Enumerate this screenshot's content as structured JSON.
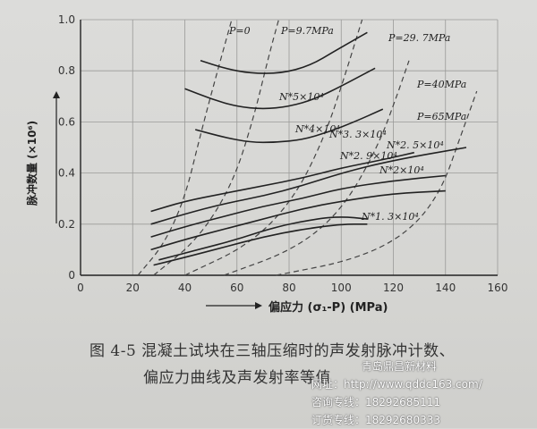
{
  "chart_data": {
    "type": "line",
    "xlabel": "偏应力 (σ₁-P) (MPa)",
    "ylabel": "脉冲数量 (×10⁶)",
    "xlim": [
      0,
      160
    ],
    "ylim": [
      0,
      1.0
    ],
    "xticks": [
      "0",
      "20",
      "40",
      "60",
      "80",
      "100",
      "120",
      "140",
      "160"
    ],
    "yticks": [
      "0",
      "0.2",
      "0.4",
      "0.6",
      "0.8",
      "1.0"
    ],
    "grid": true,
    "solid_series": [
      {
        "label": "N*5×10⁴",
        "points": [
          [
            46,
            0.84
          ],
          [
            55,
            0.81
          ],
          [
            65,
            0.79
          ],
          [
            77,
            0.79
          ],
          [
            88,
            0.82
          ],
          [
            98,
            0.88
          ],
          [
            110,
            0.95
          ]
        ]
      },
      {
        "label": "N*4×10⁴",
        "points": [
          [
            40,
            0.73
          ],
          [
            50,
            0.69
          ],
          [
            60,
            0.66
          ],
          [
            70,
            0.65
          ],
          [
            80,
            0.66
          ],
          [
            90,
            0.69
          ],
          [
            100,
            0.74
          ],
          [
            113,
            0.81
          ]
        ]
      },
      {
        "label": "N*3.3×10⁴",
        "points": [
          [
            44,
            0.57
          ],
          [
            55,
            0.54
          ],
          [
            65,
            0.52
          ],
          [
            75,
            0.52
          ],
          [
            85,
            0.53
          ],
          [
            95,
            0.56
          ],
          [
            105,
            0.6
          ],
          [
            116,
            0.65
          ]
        ]
      },
      {
        "label": "N*2.9×10⁴",
        "points": [
          [
            27,
            0.25
          ],
          [
            40,
            0.29
          ],
          [
            55,
            0.32
          ],
          [
            70,
            0.35
          ],
          [
            85,
            0.38
          ],
          [
            100,
            0.42
          ],
          [
            115,
            0.45
          ],
          [
            128,
            0.48
          ]
        ]
      },
      {
        "label": "N*2.5×10⁴",
        "points": [
          [
            27,
            0.2
          ],
          [
            40,
            0.24
          ],
          [
            55,
            0.28
          ],
          [
            70,
            0.31
          ],
          [
            85,
            0.35
          ],
          [
            100,
            0.4
          ],
          [
            120,
            0.45
          ],
          [
            148,
            0.5
          ]
        ]
      },
      {
        "label": "N*2×10⁴",
        "points": [
          [
            27,
            0.15
          ],
          [
            40,
            0.19
          ],
          [
            55,
            0.23
          ],
          [
            70,
            0.27
          ],
          [
            85,
            0.3
          ],
          [
            100,
            0.34
          ],
          [
            120,
            0.37
          ],
          [
            140,
            0.39
          ]
        ]
      },
      {
        "label": "",
        "points": [
          [
            27,
            0.1
          ],
          [
            40,
            0.14
          ],
          [
            55,
            0.18
          ],
          [
            70,
            0.22
          ],
          [
            85,
            0.26
          ],
          [
            100,
            0.29
          ],
          [
            120,
            0.32
          ],
          [
            140,
            0.33
          ]
        ]
      },
      {
        "label": "N*1.3×10⁴",
        "points": [
          [
            30,
            0.06
          ],
          [
            45,
            0.1
          ],
          [
            60,
            0.14
          ],
          [
            75,
            0.19
          ],
          [
            90,
            0.22
          ],
          [
            100,
            0.23
          ],
          [
            110,
            0.22
          ]
        ]
      },
      {
        "label": "",
        "points": [
          [
            28,
            0.04
          ],
          [
            40,
            0.07
          ],
          [
            55,
            0.11
          ],
          [
            70,
            0.15
          ],
          [
            85,
            0.18
          ],
          [
            100,
            0.2
          ],
          [
            110,
            0.2
          ]
        ]
      }
    ],
    "dashed_series": [
      {
        "label": "P=0",
        "points": [
          [
            22,
            0.0
          ],
          [
            32,
            0.12
          ],
          [
            40,
            0.3
          ],
          [
            46,
            0.55
          ],
          [
            52,
            0.78
          ],
          [
            58,
            1.0
          ]
        ]
      },
      {
        "label": "P=9.7MPa",
        "points": [
          [
            28,
            0.0
          ],
          [
            45,
            0.14
          ],
          [
            58,
            0.35
          ],
          [
            66,
            0.6
          ],
          [
            72,
            0.85
          ],
          [
            76,
            1.0
          ]
        ]
      },
      {
        "label": "P=29.7MPa",
        "points": [
          [
            40,
            0.0
          ],
          [
            65,
            0.12
          ],
          [
            82,
            0.3
          ],
          [
            94,
            0.55
          ],
          [
            102,
            0.8
          ],
          [
            108,
            1.0
          ]
        ]
      },
      {
        "label": "P=40MPa",
        "points": [
          [
            55,
            0.0
          ],
          [
            82,
            0.1
          ],
          [
            100,
            0.25
          ],
          [
            114,
            0.5
          ],
          [
            122,
            0.72
          ],
          [
            126,
            0.84
          ]
        ]
      },
      {
        "label": "P=65MPa",
        "points": [
          [
            75,
            0.0
          ],
          [
            105,
            0.06
          ],
          [
            125,
            0.16
          ],
          [
            138,
            0.32
          ],
          [
            146,
            0.55
          ],
          [
            152,
            0.72
          ]
        ]
      }
    ]
  },
  "labels": {
    "p0": "P=0",
    "p97": "P=9.7MPa",
    "p297": "P=29. 7MPa",
    "p40": "P=40MPa",
    "p65": "P=65MPa",
    "n5": "N*5×10⁴",
    "n4": "N*4×10⁴",
    "n33": "N*3. 3×10⁴",
    "n29": "N*2. 9×10⁴",
    "n25": "N*2. 5×10⁴",
    "n2": "N*2×10⁴",
    "n13": "N*1. 3×10⁴"
  },
  "axis": {
    "ylabel": "脉冲数量 (×10⁶)",
    "xlabel": "偏应力 (σ₁-P) (MPa)"
  },
  "caption": {
    "line1": "图 4-5   混凝土试块在三轴压缩时的声发射脉冲计数、",
    "line2": "偏应力曲线及声发射率等值"
  },
  "watermark": {
    "company": "青岛鼎昌新材料",
    "site": "网址：http://www.qddc163.com/",
    "consult": "咨询专线：18292685111",
    "order": "订货专线：18292680333"
  }
}
